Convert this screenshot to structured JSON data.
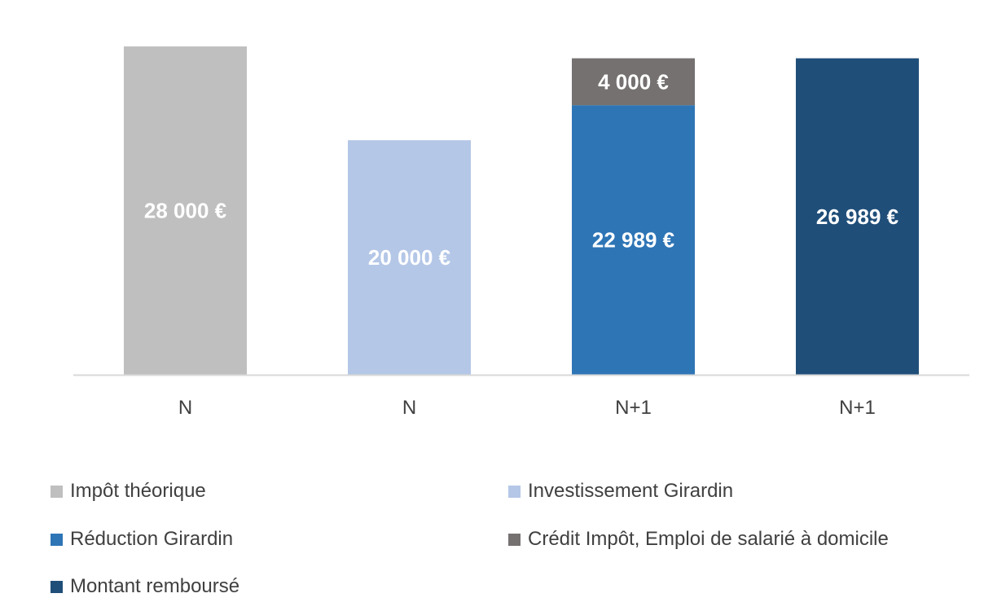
{
  "chart_data": {
    "type": "bar",
    "stacked": true,
    "categories": [
      "N",
      "N",
      "N+1",
      "N+1"
    ],
    "series": [
      {
        "name": "Impôt théorique",
        "color": "#bfbfbf",
        "values": [
          28000,
          null,
          null,
          null
        ],
        "labels": [
          "28 000 €",
          null,
          null,
          null
        ]
      },
      {
        "name": "Investissement Girardin",
        "color": "#b4c7e7",
        "values": [
          null,
          20000,
          null,
          null
        ],
        "labels": [
          null,
          "20 000 €",
          null,
          null
        ]
      },
      {
        "name": "Réduction Girardin",
        "color": "#2e75b6",
        "values": [
          null,
          null,
          22989,
          null
        ],
        "labels": [
          null,
          null,
          "22 989 €",
          null
        ]
      },
      {
        "name": "Crédit Impôt, Emploi de salarié à domicile",
        "color": "#767171",
        "values": [
          null,
          null,
          4000,
          null
        ],
        "labels": [
          null,
          null,
          "4 000 €",
          null
        ]
      },
      {
        "name": "Montant remboursé",
        "color": "#1f4e79",
        "values": [
          null,
          null,
          null,
          26989
        ],
        "labels": [
          null,
          null,
          null,
          "26 989 €"
        ]
      }
    ],
    "ylim": [
      0,
      28000
    ],
    "grid": false,
    "legend_position": "bottom",
    "axis_color": "#d9d9d9"
  }
}
